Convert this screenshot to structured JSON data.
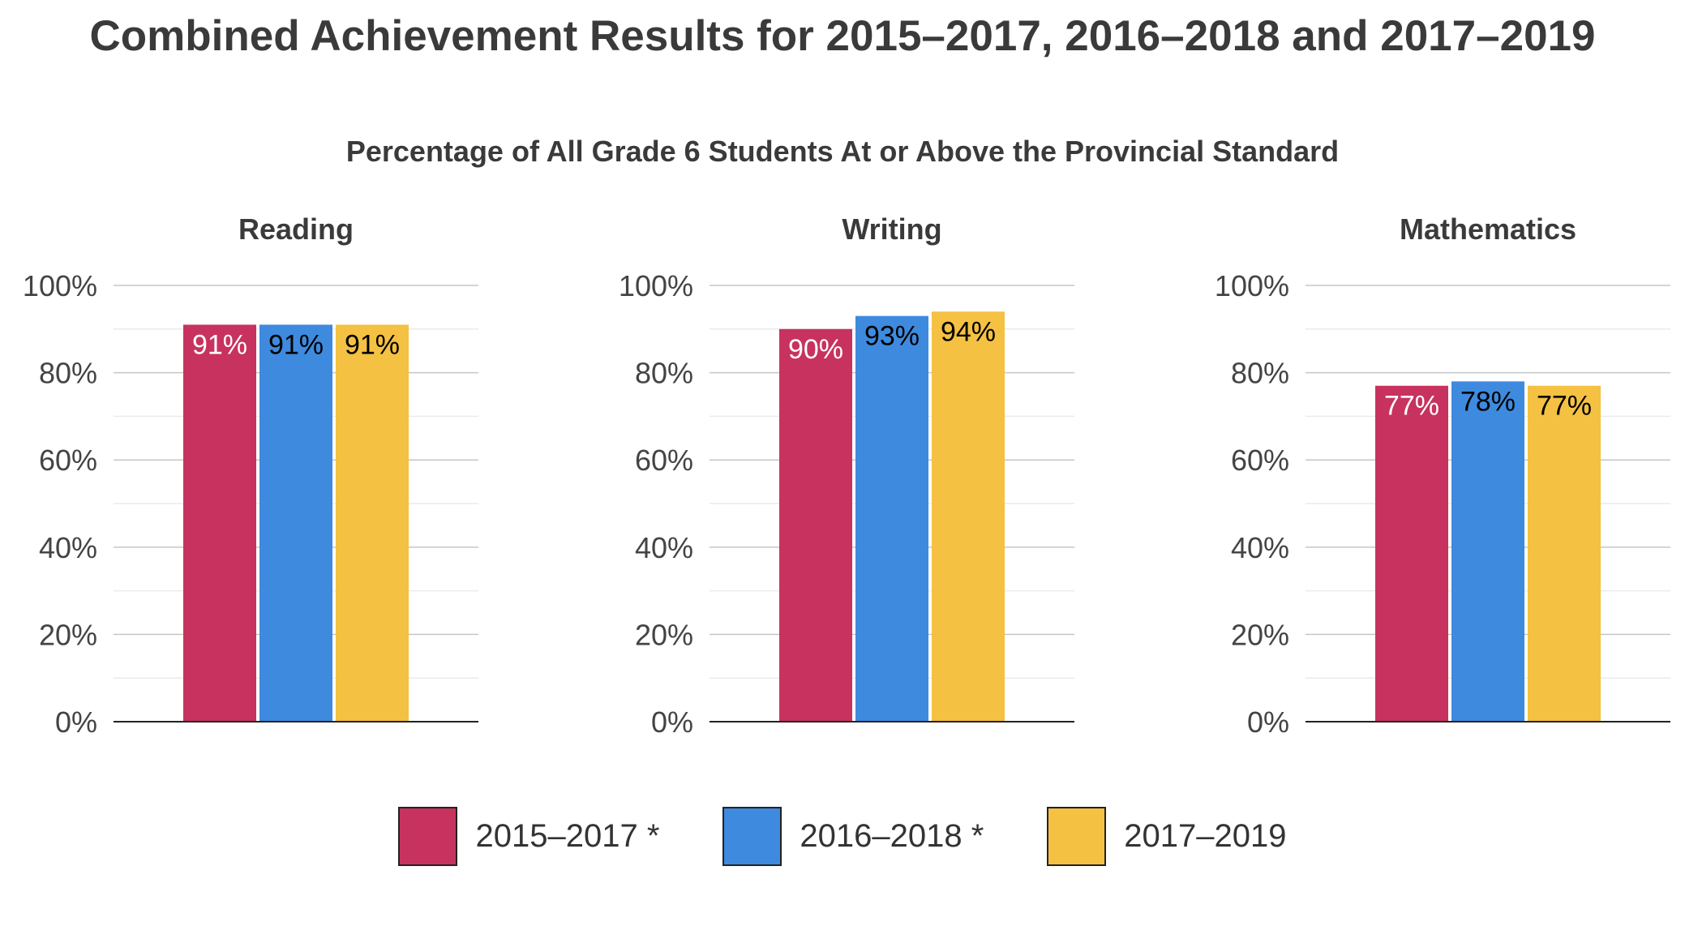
{
  "title": "Combined Achievement Results for 2015–2017, 2016–2018 and 2017–2019",
  "subtitle": "Percentage of All Grade 6 Students At or Above the Provincial Standard",
  "colors": {
    "series": [
      "#c8325e",
      "#3e8ade",
      "#f4c142"
    ],
    "grid": "#c6c6c6",
    "minor_grid": "#ebebeb",
    "axis": "#222222",
    "tick_text": "#444444",
    "panel_title": "#3a3a3a"
  },
  "legend": [
    {
      "label": "2015–2017 *",
      "color": "#c8325e"
    },
    {
      "label": "2016–2018 *",
      "color": "#3e8ade"
    },
    {
      "label": "2017–2019",
      "color": "#f4c142"
    }
  ],
  "chart_data": [
    {
      "type": "bar",
      "title": "Reading",
      "ylim": [
        0,
        100
      ],
      "yticks": [
        "0%",
        "20%",
        "40%",
        "60%",
        "80%",
        "100%"
      ],
      "grid": true,
      "series": [
        {
          "name": "2015–2017 *",
          "values": [
            91
          ],
          "labels": [
            "91%"
          ],
          "label_color": "#ffffff"
        },
        {
          "name": "2016–2018 *",
          "values": [
            91
          ],
          "labels": [
            "91%"
          ],
          "label_color": "#000000"
        },
        {
          "name": "2017–2019",
          "values": [
            91
          ],
          "labels": [
            "91%"
          ],
          "label_color": "#000000"
        }
      ]
    },
    {
      "type": "bar",
      "title": "Writing",
      "ylim": [
        0,
        100
      ],
      "yticks": [
        "0%",
        "20%",
        "40%",
        "60%",
        "80%",
        "100%"
      ],
      "grid": true,
      "series": [
        {
          "name": "2015–2017 *",
          "values": [
            90
          ],
          "labels": [
            "90%"
          ],
          "label_color": "#ffffff"
        },
        {
          "name": "2016–2018 *",
          "values": [
            93
          ],
          "labels": [
            "93%"
          ],
          "label_color": "#000000"
        },
        {
          "name": "2017–2019",
          "values": [
            94
          ],
          "labels": [
            "94%"
          ],
          "label_color": "#000000"
        }
      ]
    },
    {
      "type": "bar",
      "title": "Mathematics",
      "ylim": [
        0,
        100
      ],
      "yticks": [
        "0%",
        "20%",
        "40%",
        "60%",
        "80%",
        "100%"
      ],
      "grid": true,
      "series": [
        {
          "name": "2015–2017 *",
          "values": [
            77
          ],
          "labels": [
            "77%"
          ],
          "label_color": "#ffffff"
        },
        {
          "name": "2016–2018 *",
          "values": [
            78
          ],
          "labels": [
            "78%"
          ],
          "label_color": "#000000"
        },
        {
          "name": "2017–2019",
          "values": [
            77
          ],
          "labels": [
            "77%"
          ],
          "label_color": "#000000"
        }
      ]
    }
  ]
}
